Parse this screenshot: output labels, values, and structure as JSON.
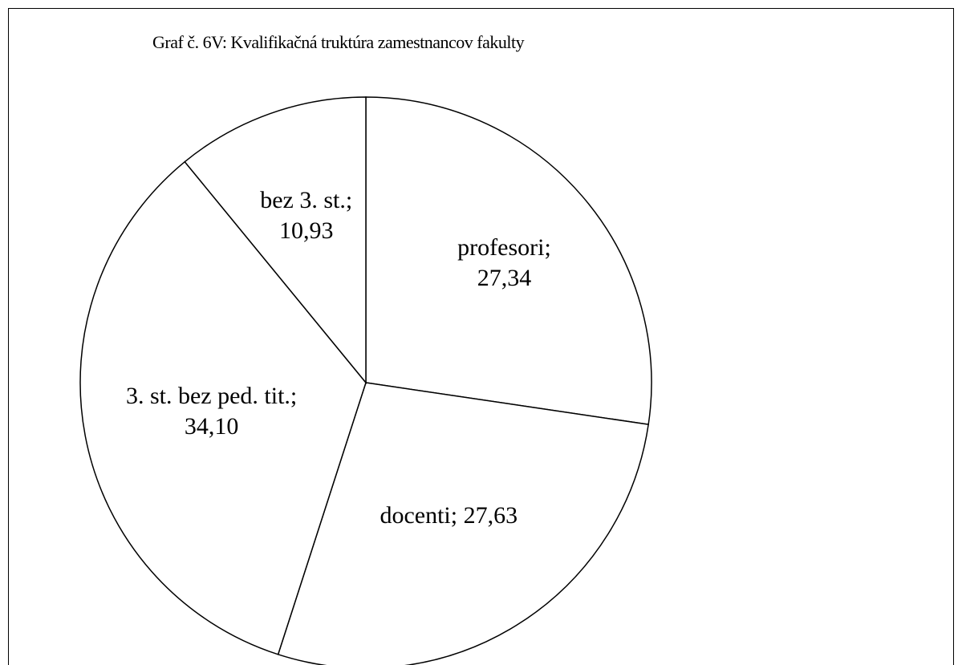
{
  "chart_data": {
    "type": "pie",
    "title": "Graf č. 6V: Kvalifikačná truktúra zamestnancov fakulty",
    "categories": [
      "profesori",
      "docenti",
      "3. st. bez ped. tit.",
      "bez 3. st."
    ],
    "values": [
      27.34,
      27.63,
      34.1,
      10.93
    ],
    "value_labels": [
      "27,34",
      "27,63",
      "34,10",
      "10,93"
    ],
    "label_separator": ";",
    "colors": [
      "#ffffff",
      "#ffffff",
      "#ffffff",
      "#ffffff"
    ],
    "stroke": "#000000"
  }
}
